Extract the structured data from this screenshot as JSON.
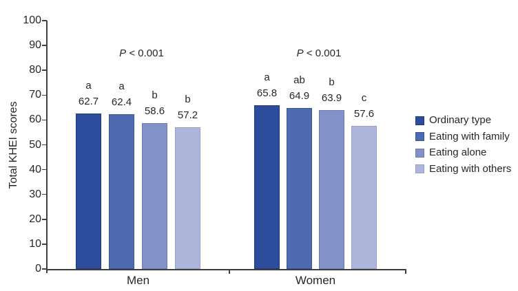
{
  "chart_data": {
    "type": "bar",
    "title": "",
    "ylabel": "Total KHEI scores",
    "xlabel": "",
    "ylim": [
      0,
      100
    ],
    "yticks": [
      "0",
      "10",
      "20",
      "30",
      "40",
      "50",
      "60",
      "70",
      "80",
      "90",
      "100"
    ],
    "categories": [
      "Men",
      "Women"
    ],
    "series": [
      {
        "name": "Ordinary type",
        "color": "#2e4c9c",
        "border_color": "#1f3a80",
        "values": [
          62.7,
          65.8
        ],
        "sig_letters": [
          "a",
          "a"
        ]
      },
      {
        "name": "Eating with family",
        "color": "#4e6ab0",
        "border_color": "#3b5493",
        "values": [
          62.4,
          64.9
        ],
        "sig_letters": [
          "a",
          "ab"
        ]
      },
      {
        "name": "Eating alone",
        "color": "#8292c7",
        "border_color": "#6c7cb2",
        "values": [
          58.6,
          63.9
        ],
        "sig_letters": [
          "b",
          "b"
        ]
      },
      {
        "name": "Eating with others",
        "color": "#aeb6db",
        "border_color": "#939dc7",
        "values": [
          57.2,
          57.6
        ],
        "sig_letters": [
          "b",
          "c"
        ]
      }
    ],
    "annotations": [
      {
        "p_symbol": "P",
        "comparison": "< 0.001",
        "group": "Men"
      },
      {
        "p_symbol": "P",
        "comparison": "< 0.001",
        "group": "Women"
      }
    ],
    "legend_position": "right",
    "grid": false,
    "value_label_decimals": 1,
    "text_color": "#262626",
    "axis_color": "#3f3f3f"
  }
}
